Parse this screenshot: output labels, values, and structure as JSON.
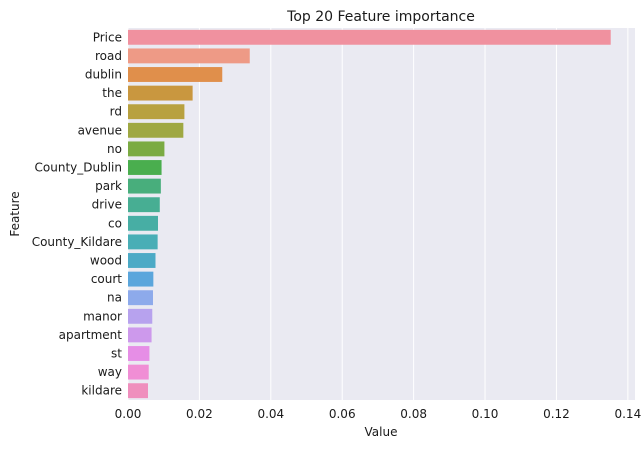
{
  "chart_data": {
    "type": "bar",
    "orientation": "horizontal",
    "title": "Top 20 Feature importance",
    "xlabel": "Value",
    "ylabel": "Feature",
    "xlim": [
      0,
      0.142
    ],
    "xticks": [
      "0.00",
      "0.02",
      "0.04",
      "0.06",
      "0.08",
      "0.10",
      "0.12",
      "0.14"
    ],
    "grid": true,
    "categories": [
      "Price",
      "road",
      "dublin",
      "the",
      "rd",
      "avenue",
      "no",
      "County_Dublin",
      "park",
      "drive",
      "co",
      "County_Kildare",
      "wood",
      "court",
      "na",
      "manor",
      "apartment",
      "st",
      "way",
      "kildare"
    ],
    "values": [
      0.1352,
      0.0341,
      0.0264,
      0.0181,
      0.0158,
      0.0155,
      0.0102,
      0.0094,
      0.0092,
      0.0089,
      0.0084,
      0.0083,
      0.0077,
      0.0071,
      0.007,
      0.0068,
      0.0066,
      0.006,
      0.0058,
      0.0056
    ],
    "colors": [
      "#f0919f",
      "#ee9a86",
      "#e08f4b",
      "#c9973f",
      "#b8a13f",
      "#9fa843",
      "#7bab43",
      "#4aae4e",
      "#48ae7c",
      "#47ae93",
      "#47aea4",
      "#49aeb6",
      "#4caac6",
      "#5ba6dc",
      "#8daaeb",
      "#b7a2ee",
      "#cd99ec",
      "#e68ee6",
      "#f08ed5",
      "#ef8fbd"
    ],
    "background": "#eaeaf2",
    "grid_color": "#ffffff"
  }
}
